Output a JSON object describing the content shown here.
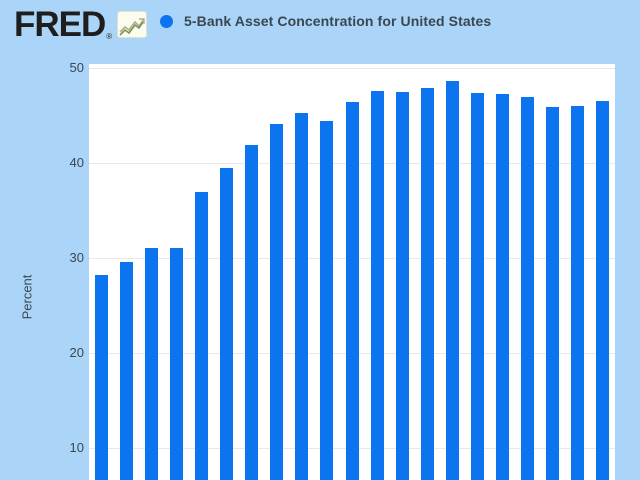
{
  "header": {
    "logo_text": "FRED",
    "logo_registered": "®",
    "series_title": "5-Bank Asset Concentration for United States"
  },
  "chart_data": {
    "type": "bar",
    "title": "5-Bank Asset Concentration for United States",
    "xlabel": "",
    "ylabel": "Percent",
    "yticks": [
      50,
      40,
      30,
      20,
      10
    ],
    "ylim_visible": [
      8,
      51
    ],
    "grid": "horizontal",
    "legend_position": "top",
    "x_axis_labels_visible": false,
    "bars_clipped_at_bottom": true,
    "values": [
      28.2,
      29.6,
      31.1,
      31.1,
      36.9,
      39.5,
      41.9,
      44.1,
      45.3,
      44.4,
      46.4,
      47.6,
      47.5,
      47.9,
      48.6,
      47.4,
      47.3,
      46.9,
      45.9,
      46.0,
      46.5
    ]
  },
  "colors": {
    "page_background": "#abd5f8",
    "plot_background": "#ffffff",
    "gridline": "#e9e9e9",
    "bar": "#0d74f0",
    "legend_marker": "#0d74f0",
    "text": "#3b4750",
    "logo": "#1e1e1e"
  }
}
